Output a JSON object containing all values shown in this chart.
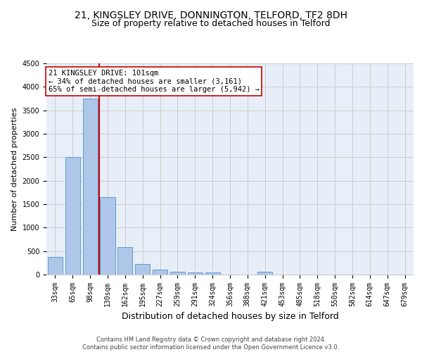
{
  "title1": "21, KINGSLEY DRIVE, DONNINGTON, TELFORD, TF2 8DH",
  "title2": "Size of property relative to detached houses in Telford",
  "xlabel": "Distribution of detached houses by size in Telford",
  "ylabel": "Number of detached properties",
  "footer1": "Contains HM Land Registry data © Crown copyright and database right 2024.",
  "footer2": "Contains public sector information licensed under the Open Government Licence v3.0.",
  "categories": [
    "33sqm",
    "65sqm",
    "98sqm",
    "130sqm",
    "162sqm",
    "195sqm",
    "227sqm",
    "259sqm",
    "291sqm",
    "324sqm",
    "356sqm",
    "388sqm",
    "421sqm",
    "453sqm",
    "485sqm",
    "518sqm",
    "550sqm",
    "582sqm",
    "614sqm",
    "647sqm",
    "679sqm"
  ],
  "values": [
    370,
    2500,
    3750,
    1650,
    590,
    225,
    110,
    65,
    50,
    40,
    0,
    0,
    60,
    0,
    0,
    0,
    0,
    0,
    0,
    0,
    0
  ],
  "bar_color": "#aec6e8",
  "bar_edge_color": "#5b9bd5",
  "vline_color": "#cc0000",
  "annotation_text": "21 KINGSLEY DRIVE: 101sqm\n← 34% of detached houses are smaller (3,161)\n65% of semi-detached houses are larger (5,942) →",
  "annotation_box_color": "#ffffff",
  "annotation_box_edge": "#cc0000",
  "ylim": [
    0,
    4500
  ],
  "yticks": [
    0,
    500,
    1000,
    1500,
    2000,
    2500,
    3000,
    3500,
    4000,
    4500
  ],
  "grid_color": "#cccccc",
  "bg_color": "#e8eef7",
  "title1_fontsize": 10,
  "title2_fontsize": 9,
  "annotation_fontsize": 7.5,
  "ylabel_fontsize": 8,
  "xlabel_fontsize": 9,
  "footer_fontsize": 6,
  "tick_fontsize": 7
}
